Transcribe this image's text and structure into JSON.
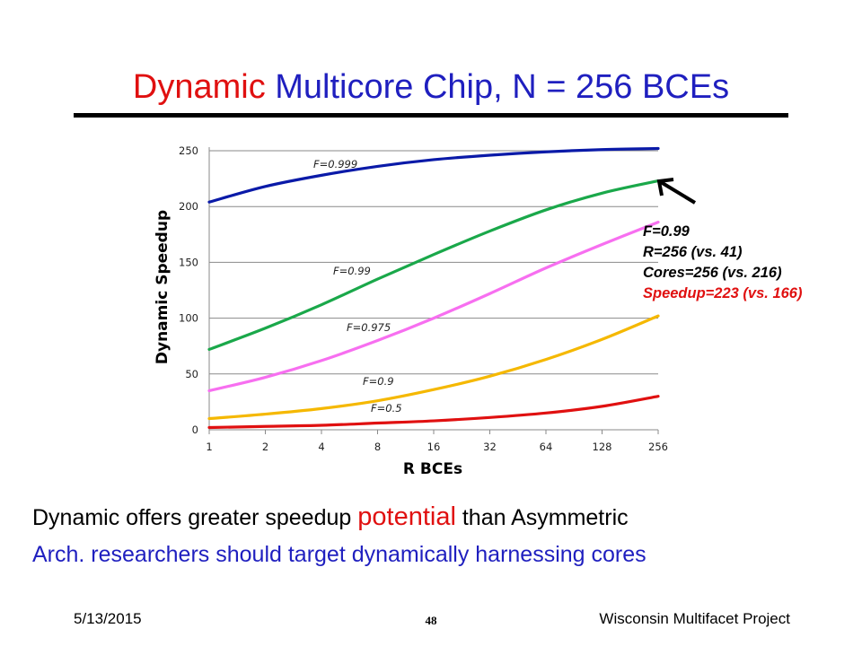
{
  "slide": {
    "title_accent": "Dynamic",
    "title_rest": "Multicore Chip, N = 256 BCEs",
    "callout": {
      "line1": "F=0.99",
      "line2": "R=256 (vs. 41)",
      "line3": "Cores=256 (vs. 216)",
      "line4": "Speedup=223 (vs. 166)"
    },
    "arrow_glyph": "arrow-up-left",
    "body": {
      "line1_a": "Dynamic offers greater speedup",
      "line1_b": "potential",
      "line1_c": "than Asymmetric",
      "line2": "Arch. researchers should target dynamically harnessing cores"
    },
    "footer": {
      "date": "5/13/2015",
      "page": "48",
      "project": "Wisconsin Multifacet Project"
    }
  },
  "chart_data": {
    "type": "line",
    "xlabel": "R BCEs",
    "ylabel": "Dynamic Speedup",
    "categories": [
      "1",
      "2",
      "4",
      "8",
      "16",
      "32",
      "64",
      "128",
      "256"
    ],
    "ylim": [
      0,
      250
    ],
    "yticks": [
      "0",
      "50",
      "100",
      "150",
      "200",
      "250"
    ],
    "grid": true,
    "legend": "none (inline labels)",
    "series": [
      {
        "name": "F=0.999",
        "color": "#0a1aa8",
        "values": [
          204,
          218,
          228,
          236,
          242,
          246,
          249,
          251,
          252
        ]
      },
      {
        "name": "F=0.99",
        "color": "#1aa84a",
        "values": [
          72,
          91,
          112,
          135,
          157,
          178,
          197,
          212,
          223
        ]
      },
      {
        "name": "F=0.975",
        "color": "#f76ff0",
        "values": [
          35,
          47,
          62,
          80,
          100,
          122,
          145,
          166,
          186
        ]
      },
      {
        "name": "F=0.9",
        "color": "#f5b800",
        "values": [
          10,
          14,
          19,
          26,
          36,
          48,
          63,
          81,
          102
        ]
      },
      {
        "name": "F=0.5",
        "color": "#e01010",
        "values": [
          2,
          3,
          4,
          6,
          8,
          11,
          15,
          21,
          30
        ]
      }
    ]
  }
}
